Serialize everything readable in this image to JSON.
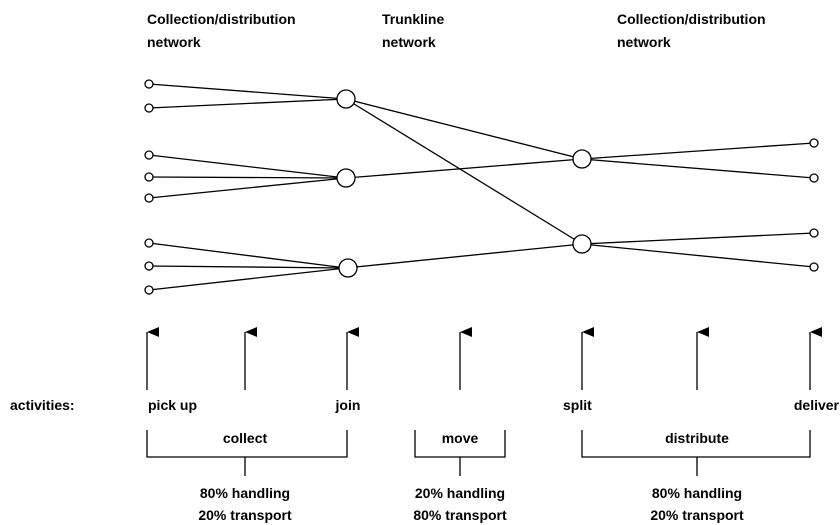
{
  "headers": [
    {
      "lines": [
        "Collection/distribution",
        "network"
      ]
    },
    {
      "lines": [
        "Trunkline",
        "network"
      ]
    },
    {
      "lines": [
        "Collection/distribution",
        "network"
      ]
    }
  ],
  "activities_label": "activities:",
  "activities": [
    "pick up",
    "join",
    "split",
    "deliver"
  ],
  "brackets": [
    {
      "label": "collect",
      "notes": [
        "80% handling",
        "20% transport"
      ]
    },
    {
      "label": "move",
      "notes": [
        "20% handling",
        "80% transport"
      ]
    },
    {
      "label": "distribute",
      "notes": [
        "80% handling",
        "20% transport"
      ]
    }
  ]
}
